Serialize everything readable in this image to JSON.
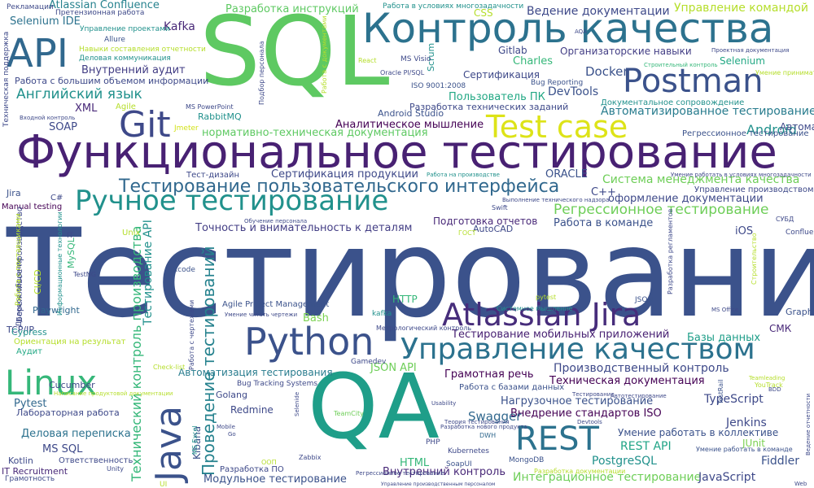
{
  "cloud": {
    "words": [
      {
        "text": "Тестирование",
        "color": "#3b528b",
        "rot": 0
      },
      {
        "text": "SQL",
        "color": "#5ec962",
        "rot": 0
      },
      {
        "text": "QA",
        "color": "#1f9e89",
        "rot": 0
      },
      {
        "text": "Функциональное тестирование",
        "color": "#482173",
        "rot": 0
      },
      {
        "text": "Контроль качества",
        "color": "#2c728e",
        "rot": 0
      },
      {
        "text": "API",
        "color": "#31688e",
        "rot": 0
      },
      {
        "text": "Postman",
        "color": "#3b528b",
        "rot": 0
      },
      {
        "text": "Test case",
        "color": "#dde318",
        "rot": 0
      },
      {
        "text": "Git",
        "color": "#3e4989",
        "rot": 0
      },
      {
        "text": "Ручное тестирование",
        "color": "#21918c",
        "rot": 0
      },
      {
        "text": "Python",
        "color": "#3b528b",
        "rot": 0
      },
      {
        "text": "Управление качеством",
        "color": "#2c728e",
        "rot": 0
      },
      {
        "text": "Atlassian Jira",
        "color": "#472d7b",
        "rot": 0
      },
      {
        "text": "Linux",
        "color": "#35b779",
        "rot": 0
      },
      {
        "text": "Java",
        "color": "#3b528b",
        "rot": -90
      },
      {
        "text": "REST",
        "color": "#2c728e",
        "rot": 0
      },
      {
        "text": "Тестирование пользовательского интерфейса",
        "color": "#31688e",
        "rot": 0
      },
      {
        "text": "Проведение тестирований",
        "color": "#26828e",
        "rot": -90
      },
      {
        "text": "Регрессионное тестирование",
        "color": "#6ece58",
        "rot": 0
      },
      {
        "text": "Тестирование мобильных приложений",
        "color": "#482173",
        "rot": 0
      },
      {
        "text": "Производственный контроль",
        "color": "#3e4989",
        "rot": 0
      },
      {
        "text": "Техническая документация",
        "color": "#440154",
        "rot": 0
      },
      {
        "text": "Нагрузочное тестирование",
        "color": "#3b528b",
        "rot": 0
      },
      {
        "text": "Внедрение стандартов ISO",
        "color": "#440154",
        "rot": 0
      },
      {
        "text": "Интеграционное тестирование",
        "color": "#6ece58",
        "rot": 0
      },
      {
        "text": "Модульное тестирование",
        "color": "#3b528b",
        "rot": 0
      },
      {
        "text": "Технический контроль производства",
        "color": "#35b779",
        "rot": -90
      },
      {
        "text": "Тестирование API",
        "color": "#21918c",
        "rot": -90
      },
      {
        "text": "Английский язык",
        "color": "#21918c",
        "rot": 0
      },
      {
        "text": "Ведение документации",
        "color": "#3e4989",
        "rot": 0
      },
      {
        "text": "Управление командой",
        "color": "#b5de2b",
        "rot": 0
      },
      {
        "text": "Разработка инструкций",
        "color": "#5ec962",
        "rot": 0
      },
      {
        "text": "Atlassian Confluence",
        "color": "#26828e",
        "rot": 0
      },
      {
        "text": "Selenium IDE",
        "color": "#2c728e",
        "rot": 0
      },
      {
        "text": "Организаторские навыки",
        "color": "#433e85",
        "rot": 0
      },
      {
        "text": "Автоматизированное тестирование",
        "color": "#287c8e",
        "rot": 0
      },
      {
        "text": "Система менеджмента качества",
        "color": "#6ece58",
        "rot": 0
      },
      {
        "text": "оформление документации",
        "color": "#3e4989",
        "rot": 0
      },
      {
        "text": "Работа в команде",
        "color": "#3b528b",
        "rot": 0
      },
      {
        "text": "нормативно-техническая документация",
        "color": "#5ec962",
        "rot": 0
      },
      {
        "text": "Аналитическое мышление",
        "color": "#440154",
        "rot": 0
      },
      {
        "text": "Сертификация продукции",
        "color": "#3e4989",
        "rot": 0
      },
      {
        "text": "Точность и внимательность к деталям",
        "color": "#433e85",
        "rot": 0
      },
      {
        "text": "Подготовка отчетов",
        "color": "#482878",
        "rot": 0
      },
      {
        "text": "Грамотная речь",
        "color": "#440154",
        "rot": 0
      },
      {
        "text": "Деловая переписка",
        "color": "#2c728e",
        "rot": 0
      },
      {
        "text": "Умение работать в коллективе",
        "color": "#3b528b",
        "rot": 0
      },
      {
        "text": "Автоматизация тестирования",
        "color": "#287c8e",
        "rot": 0
      },
      {
        "text": "PostgreSQL",
        "color": "#21918c",
        "rot": 0
      },
      {
        "text": "JavaScript",
        "color": "#3e4989",
        "rot": 0
      },
      {
        "text": "Fiddler",
        "color": "#3b528b",
        "rot": 0
      },
      {
        "text": "Jenkins",
        "color": "#3e4989",
        "rot": 0
      },
      {
        "text": "TypeScript",
        "color": "#3e4989",
        "rot": 0
      },
      {
        "text": "Swagger",
        "color": "#31688e",
        "rot": 0
      },
      {
        "text": "REST API",
        "color": "#20a486",
        "rot": 0
      },
      {
        "text": "JSON API",
        "color": "#6ece58",
        "rot": 0
      },
      {
        "text": "Базы данных",
        "color": "#1f9e89",
        "rot": 0
      },
      {
        "text": "Docker",
        "color": "#3b528b",
        "rot": 0
      },
      {
        "text": "Android",
        "color": "#21918c",
        "rot": 0
      },
      {
        "text": "Kafka",
        "color": "#482878",
        "rot": 0
      },
      {
        "text": "Gitlab",
        "color": "#3e4989",
        "rot": 0
      },
      {
        "text": "Charles",
        "color": "#35b779",
        "rot": 0
      },
      {
        "text": "Selenium",
        "color": "#22a884",
        "rot": 0
      },
      {
        "text": "Сертификация",
        "color": "#3e4989",
        "rot": 0
      },
      {
        "text": "Пользователь ПК",
        "color": "#22a884",
        "rot": 0
      },
      {
        "text": "DevTools",
        "color": "#3b528b",
        "rot": 0
      },
      {
        "text": "Внутренний аудит",
        "color": "#433e85",
        "rot": 0
      },
      {
        "text": "Работа с большим объемом информации",
        "color": "#3e4989",
        "rot": 0
      },
      {
        "text": "XML",
        "color": "#482878",
        "rot": 0
      },
      {
        "text": "SOAP",
        "color": "#3e4989",
        "rot": 0
      },
      {
        "text": "ORACLE",
        "color": "#3b528b",
        "rot": 0
      },
      {
        "text": "iOS",
        "color": "#3e4989",
        "rot": 0
      },
      {
        "text": "CSS",
        "color": "#b5de2b",
        "rot": 0
      },
      {
        "text": "HTTP",
        "color": "#35b779",
        "rot": 0
      },
      {
        "text": "Bash",
        "color": "#7ad151",
        "rot": 0
      },
      {
        "text": "СМК",
        "color": "#482878",
        "rot": 0
      },
      {
        "text": "Jira",
        "color": "#3b528b",
        "rot": 0
      },
      {
        "text": "TCP/IP",
        "color": "#3e4989",
        "rot": 0
      },
      {
        "text": "MS SQL",
        "color": "#3e4989",
        "rot": 0
      },
      {
        "text": "Pytest",
        "color": "#31688e",
        "rot": 0
      },
      {
        "text": "Kotlin",
        "color": "#3e4989",
        "rot": 0
      },
      {
        "text": "HTML",
        "color": "#35b779",
        "rot": 0
      },
      {
        "text": "Redmine",
        "color": "#3e4989",
        "rot": 0
      },
      {
        "text": "Golang",
        "color": "#3e4989",
        "rot": 0
      },
      {
        "text": "Playwright",
        "color": "#31688e",
        "rot": 0
      },
      {
        "text": "Cucumber",
        "color": "#3e4989",
        "rot": 0
      },
      {
        "text": "JUnit",
        "color": "#7ad151",
        "rot": 0
      },
      {
        "text": "Kibana",
        "color": "#3b528b",
        "rot": -90
      },
      {
        "text": "MySQL",
        "color": "#35b779",
        "rot": -90
      },
      {
        "text": "Scrum",
        "color": "#21918c",
        "rot": -90
      },
      {
        "text": "Android Studio",
        "color": "#3b528b",
        "rot": 0
      },
      {
        "text": "RabbitMQ",
        "color": "#21918c",
        "rot": 0
      },
      {
        "text": "Внутренний контроль",
        "color": "#482878",
        "rot": 0
      },
      {
        "text": "Лабораторная работа",
        "color": "#3e4989",
        "rot": 0
      },
      {
        "text": "Разработка технических заданий",
        "color": "#3e4989",
        "rot": 0
      },
      {
        "text": "Документальное сопровождение",
        "color": "#21918c",
        "rot": 0
      },
      {
        "text": "Работа с базами данных",
        "color": "#3b528b",
        "rot": 0
      },
      {
        "text": "Agile Project Management",
        "color": "#3b528b",
        "rot": 0
      },
      {
        "text": "Bug Tracking Systems",
        "color": "#3e4989",
        "rot": 0
      },
      {
        "text": "Управление производством",
        "color": "#3e4989",
        "rot": 0
      },
      {
        "text": "Тест-дизайн",
        "color": "#3e4989",
        "rot": 0
      },
      {
        "text": "Manual testing",
        "color": "#440154",
        "rot": 0
      },
      {
        "text": "IT Recruitment",
        "color": "#482878",
        "rot": 0
      },
      {
        "text": "Грамотность",
        "color": "#3e4989",
        "rot": 0
      },
      {
        "text": "Ответственность",
        "color": "#3e4989",
        "rot": 0
      },
      {
        "text": "Управление проектами",
        "color": "#21918c",
        "rot": 0
      },
      {
        "text": "Деловая коммуникация",
        "color": "#21918c",
        "rot": 0
      },
      {
        "text": "Навыки составления отчетности",
        "color": "#b5de2b",
        "rot": 0
      },
      {
        "text": "Претензионная работа",
        "color": "#3e4989",
        "rot": 0
      },
      {
        "text": "Allure",
        "color": "#3b528b",
        "rot": 0
      },
      {
        "text": "Рекламации",
        "color": "#3e4989",
        "rot": 0
      },
      {
        "text": "Работа в условиях многозадачности",
        "color": "#21918c",
        "rot": 0
      },
      {
        "text": "ISO 9001:2008",
        "color": "#3b528b",
        "rot": 0
      },
      {
        "text": "Bug Reporting",
        "color": "#3b528b",
        "rot": 0
      },
      {
        "text": "Jmeter",
        "color": "#d2e21b",
        "rot": 0
      },
      {
        "text": "Agile",
        "color": "#b5de2b",
        "rot": 0
      },
      {
        "text": "Unix",
        "color": "#b5de2b",
        "rot": 0
      },
      {
        "text": "Xcode",
        "color": "#3b528b",
        "rot": 0
      },
      {
        "text": "C#",
        "color": "#3e4989",
        "rot": 0
      },
      {
        "text": "C++",
        "color": "#3e4989",
        "rot": 0
      },
      {
        "text": "JSON",
        "color": "#3b528b",
        "rot": 0
      },
      {
        "text": "CI/CD",
        "color": "#b5de2b",
        "rot": -90
      },
      {
        "text": "Cypress",
        "color": "#21918c",
        "rot": 0
      },
      {
        "text": "Автоматизация",
        "color": "#3e4989",
        "rot": 0
      },
      {
        "text": "Регрессионное тестирование",
        "color": "#3b528b",
        "rot": 0
      },
      {
        "text": "Аудит",
        "color": "#22a884",
        "rot": 0
      },
      {
        "text": "AutoCAD",
        "color": "#3e4989",
        "rot": 0
      },
      {
        "text": "ГОСТ",
        "color": "#b5de2b",
        "rot": 0
      },
      {
        "text": "СУБД",
        "color": "#3e4989",
        "rot": 0
      },
      {
        "text": "Confluence",
        "color": "#3e4989",
        "rot": 0
      },
      {
        "text": "GraphQL",
        "color": "#3b528b",
        "rot": 0
      },
      {
        "text": "SoapUI",
        "color": "#3b528b",
        "rot": 0
      },
      {
        "text": "PHP",
        "color": "#3e4989",
        "rot": 0
      },
      {
        "text": "DWH",
        "color": "#31688e",
        "rot": 0
      },
      {
        "text": "Kubernetes",
        "color": "#3e4989",
        "rot": 0
      },
      {
        "text": "MongoDB",
        "color": "#3b528b",
        "rot": 0
      },
      {
        "text": "TestRail",
        "color": "#3b528b",
        "rot": -90
      },
      {
        "text": "YouTrack",
        "color": "#b5de2b",
        "rot": 0
      },
      {
        "text": "Zabbix",
        "color": "#3e4989",
        "rot": 0
      },
      {
        "text": "ООП",
        "color": "#b5de2b",
        "rot": 0
      },
      {
        "text": "Unity",
        "color": "#3e4989",
        "rot": 0
      },
      {
        "text": "TeamCity",
        "color": "#6ece58",
        "rot": 0
      },
      {
        "text": "Check-list",
        "color": "#b5de2b",
        "rot": 0
      },
      {
        "text": "Gamedev",
        "color": "#3e4989",
        "rot": 0
      },
      {
        "text": "kafka",
        "color": "#21918c",
        "rot": 0
      },
      {
        "text": "React",
        "color": "#b5de2b",
        "rot": 0
      },
      {
        "text": "MS Visio",
        "color": "#3e4989",
        "rot": 0
      },
      {
        "text": "Oracle Pl/SQL",
        "color": "#3e4989",
        "rot": 0
      },
      {
        "text": "MS PowerPoint",
        "color": "#3e4989",
        "rot": 0
      },
      {
        "text": "Входной контроль",
        "color": "#3e4989",
        "rot": 0
      },
      {
        "text": "Умение принимать решения",
        "color": "#b5de2b",
        "rot": 0
      },
      {
        "text": "Строительный контроль",
        "color": "#35b779",
        "rot": 0
      },
      {
        "text": "Проектная документация",
        "color": "#3e4989",
        "rot": 0
      },
      {
        "text": "Умение работать в команде",
        "color": "#3b528b",
        "rot": 0
      },
      {
        "text": "Разработка документации",
        "color": "#b5de2b",
        "rot": 0
      },
      {
        "text": "Разработка ПО",
        "color": "#3e4989",
        "rot": 0
      },
      {
        "text": "Ориентация на результат",
        "color": "#b5de2b",
        "rot": 0
      },
      {
        "text": "Деловое общение",
        "color": "#3e4989",
        "rot": -90
      },
      {
        "text": "Информационные технологии",
        "color": "#21918c",
        "rot": -90
      },
      {
        "text": "Бережливое производство",
        "color": "#3e4989",
        "rot": -90
      },
      {
        "text": "Работа с поставщиками",
        "color": "#b5de2b",
        "rot": -90
      },
      {
        "text": "Техническая поддержка",
        "color": "#3e4989",
        "rot": -90
      },
      {
        "text": "Работа с документами",
        "color": "#b5de2b",
        "rot": -90
      },
      {
        "text": "Подбор персонала",
        "color": "#3e4989",
        "rot": -90
      },
      {
        "text": "Работа с чертежами",
        "color": "#3e4989",
        "rot": -90
      },
      {
        "text": "Разработка регламентов",
        "color": "#3e4989",
        "rot": -90
      },
      {
        "text": "Строительство",
        "color": "#b5de2b",
        "rot": -90
      },
      {
        "text": "Ведение отчетности",
        "color": "#3e4989",
        "rot": -90
      },
      {
        "text": "MS Excel",
        "color": "#21918c",
        "rot": -90
      },
      {
        "text": "Selenide",
        "color": "#3e4989",
        "rot": -90
      },
      {
        "text": "pytest",
        "color": "#b5de2b",
        "rot": 0
      },
      {
        "text": "TestNG",
        "color": "#3e4989",
        "rot": 0
      },
      {
        "text": "Системное мышление",
        "color": "#21918c",
        "rot": 0
      },
      {
        "text": "MS Office",
        "color": "#3e4989",
        "rot": 0
      },
      {
        "text": "Метрологический контроль",
        "color": "#3e4989",
        "rot": 0
      },
      {
        "text": "Умение читать чертежи",
        "color": "#3e4989",
        "rot": 0
      },
      {
        "text": "Обучение персонала",
        "color": "#3e4989",
        "rot": 0
      },
      {
        "text": "Работа на производстве",
        "color": "#21918c",
        "rot": 0
      },
      {
        "text": "Выполнение технического надзора",
        "color": "#3e4989",
        "rot": 0
      },
      {
        "text": "Умение работать в условиях многозадачности",
        "color": "#3e4989",
        "rot": 0
      },
      {
        "text": "Написание продуктовой документации",
        "color": "#b5de2b",
        "rot": 0
      },
      {
        "text": "Тестирование",
        "color": "#3e4989",
        "rot": 0
      },
      {
        "text": "Автотестирование",
        "color": "#3e4989",
        "rot": 0
      },
      {
        "text": "Teamleading",
        "color": "#b5de2b",
        "rot": 0
      },
      {
        "text": "BDD",
        "color": "#3e4989",
        "rot": 0
      },
      {
        "text": "Usability",
        "color": "#3e4989",
        "rot": 0
      },
      {
        "text": "Разработка нового продукта",
        "color": "#3e4989",
        "rot": 0
      },
      {
        "text": "Теория тестирования",
        "color": "#3e4989",
        "rot": 0
      },
      {
        "text": "Devtools",
        "color": "#3e4989",
        "rot": 0
      },
      {
        "text": "Mobile",
        "color": "#3e4989",
        "rot": 0
      },
      {
        "text": "Go",
        "color": "#3e4989",
        "rot": 0
      },
      {
        "text": "IT",
        "color": "#3e4989",
        "rot": 0
      },
      {
        "text": "Swift",
        "color": "#3e4989",
        "rot": 0
      },
      {
        "text": "Web",
        "color": "#3e4989",
        "rot": 0
      },
      {
        "text": "UI",
        "color": "#b5de2b",
        "rot": 0
      },
      {
        "text": "AQA",
        "color": "#3e4989",
        "rot": 0
      },
      {
        "text": "Управление производственным персоналом",
        "color": "#3e4989",
        "rot": 0
      },
      {
        "text": "Регрессионное тестирование",
        "color": "#3e4989",
        "rot": 0
      }
    ]
  }
}
